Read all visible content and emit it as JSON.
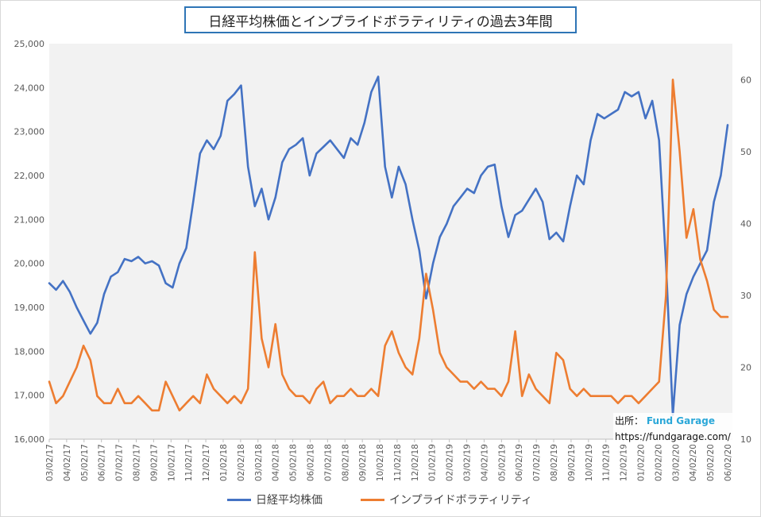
{
  "title": "日経平均株価とインプライドボラティリティの過去3年間",
  "source": {
    "label": "出所：",
    "name": "Fund Garage",
    "url": "https://fundgarage.com/"
  },
  "colors": {
    "nikkei": "#4472c4",
    "iv": "#ed7d31",
    "plot_bg": "#f2f2f2"
  },
  "chart_data": {
    "type": "line",
    "title": "日経平均株価とインプライドボラティリティの過去3年間",
    "x_tick_labels": [
      "03/02/17",
      "04/02/17",
      "05/02/17",
      "06/02/17",
      "07/02/17",
      "08/02/17",
      "09/02/17",
      "10/02/17",
      "11/02/17",
      "12/02/17",
      "01/02/18",
      "02/02/18",
      "03/02/18",
      "04/02/18",
      "05/02/18",
      "06/02/18",
      "07/02/18",
      "08/02/18",
      "09/02/18",
      "10/02/18",
      "11/02/18",
      "12/02/18",
      "01/02/19",
      "02/02/19",
      "03/02/19",
      "04/02/19",
      "05/02/19",
      "06/02/19",
      "07/02/19",
      "08/02/19",
      "09/02/19",
      "10/02/19",
      "11/02/19",
      "12/02/19",
      "01/02/20",
      "02/02/20",
      "03/02/20",
      "04/02/20",
      "05/02/20",
      "06/02/20"
    ],
    "y_left": {
      "min": 16000,
      "max": 25000,
      "ticks": [
        "16,000",
        "17,000",
        "18,000",
        "19,000",
        "20,000",
        "21,000",
        "22,000",
        "23,000",
        "24,000",
        "25,000"
      ]
    },
    "y_right": {
      "min": 10,
      "max": 65,
      "ticks": [
        "10",
        "20",
        "30",
        "40",
        "50",
        "60"
      ]
    },
    "grid": false,
    "legend_position": "bottom",
    "series": [
      {
        "name": "日経平均株価",
        "axis": "left",
        "values": [
          19550,
          19400,
          19600,
          19350,
          19000,
          18700,
          18400,
          18650,
          19300,
          19700,
          19800,
          20100,
          20050,
          20150,
          20000,
          20050,
          19950,
          19550,
          19450,
          20000,
          20350,
          21400,
          22500,
          22800,
          22600,
          22900,
          23700,
          23850,
          24050,
          22200,
          21300,
          21700,
          21000,
          21500,
          22300,
          22600,
          22700,
          22850,
          22000,
          22500,
          22650,
          22800,
          22600,
          22400,
          22850,
          22700,
          23200,
          23900,
          24250,
          22200,
          21500,
          22200,
          21800,
          21000,
          20300,
          19200,
          20000,
          20600,
          20900,
          21300,
          21500,
          21700,
          21600,
          22000,
          22200,
          22250,
          21300,
          20600,
          21100,
          21200,
          21450,
          21700,
          21400,
          20550,
          20700,
          20500,
          21300,
          22000,
          21800,
          22800,
          23400,
          23300,
          23400,
          23500,
          23900,
          23800,
          23900,
          23300,
          23700,
          22800,
          20000,
          16550,
          18600,
          19300,
          19700,
          20000,
          20300,
          21400,
          22000,
          23150
        ]
      },
      {
        "name": "インプライドボラティリティ",
        "axis": "right",
        "values": [
          18,
          15,
          16,
          18,
          20,
          23,
          21,
          16,
          15,
          15,
          17,
          15,
          15,
          16,
          15,
          14,
          14,
          18,
          16,
          14,
          15,
          16,
          15,
          19,
          17,
          16,
          15,
          16,
          15,
          17,
          36,
          24,
          20,
          26,
          19,
          17,
          16,
          16,
          15,
          17,
          18,
          15,
          16,
          16,
          17,
          16,
          16,
          17,
          16,
          23,
          25,
          22,
          20,
          19,
          24,
          33,
          28,
          22,
          20,
          19,
          18,
          18,
          17,
          18,
          17,
          17,
          16,
          18,
          25,
          16,
          19,
          17,
          16,
          15,
          22,
          21,
          17,
          16,
          17,
          16,
          16,
          16,
          16,
          15,
          16,
          16,
          15,
          16,
          17,
          18,
          30,
          60,
          50,
          38,
          42,
          35,
          32,
          28,
          27,
          27
        ]
      }
    ]
  }
}
